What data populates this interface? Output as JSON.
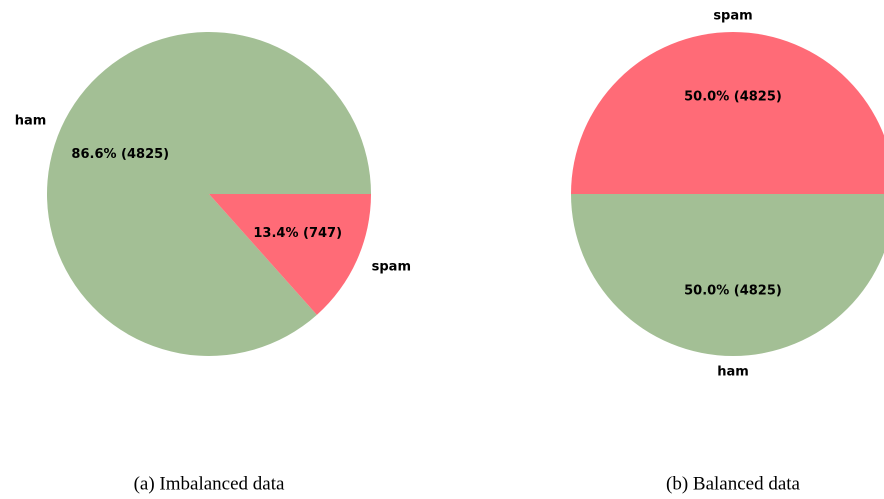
{
  "chart_data": [
    {
      "type": "pie",
      "caption": "(a) Imbalanced data",
      "categories": [
        "ham",
        "spam"
      ],
      "values": [
        86.6,
        13.4
      ],
      "value_labels": [
        "86.6% (4825)",
        "13.4% (747)"
      ],
      "colors": [
        "#a3bf95",
        "#ff6b77"
      ]
    },
    {
      "type": "pie",
      "caption": "(b) Balanced data",
      "categories": [
        "spam",
        "ham"
      ],
      "values": [
        50.0,
        50.0
      ],
      "value_labels": [
        "50.0% (4825)",
        "50.0% (4825)"
      ],
      "colors": [
        "#ff6b77",
        "#a3bf95"
      ]
    }
  ]
}
